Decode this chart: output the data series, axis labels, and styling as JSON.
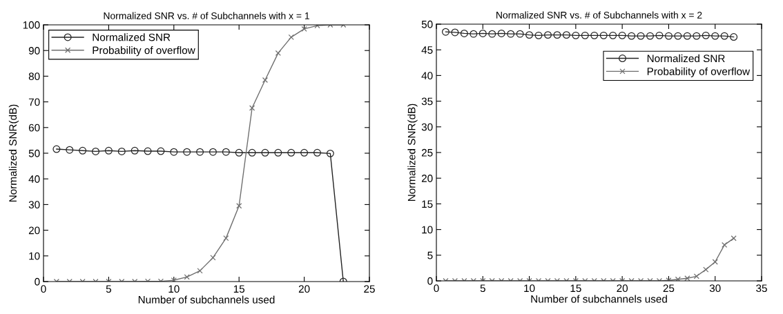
{
  "chart_data": [
    {
      "type": "line",
      "title": "Normalized SNR vs. # of Subchannels with x = 1",
      "xlabel": "Number of subchannels used",
      "ylabel": "Normalized SNR(dB)",
      "xlim": [
        0,
        25
      ],
      "xticks": [
        0,
        5,
        10,
        15,
        20,
        25
      ],
      "ylim": [
        0,
        100
      ],
      "yticks": [
        0,
        10,
        20,
        30,
        40,
        50,
        60,
        70,
        80,
        90,
        100
      ],
      "grid": false,
      "legend": "top left",
      "line_style": "solid",
      "series": [
        {
          "name": "Normalized SNR",
          "color": "#222222",
          "marker": "circle",
          "x": [
            1,
            2,
            3,
            4,
            5,
            6,
            7,
            8,
            9,
            10,
            11,
            12,
            13,
            14,
            15,
            16,
            17,
            18,
            19,
            20,
            21,
            22,
            23
          ],
          "values": [
            51.6,
            51.3,
            51.0,
            50.7,
            51.0,
            50.7,
            51.0,
            50.8,
            50.8,
            50.5,
            50.5,
            50.5,
            50.5,
            50.5,
            50.2,
            50.2,
            50.2,
            50.2,
            50.2,
            50.2,
            50.2,
            49.9,
            0
          ]
        },
        {
          "name": "Probability of overflow",
          "color": "#6e6e6e",
          "marker": "cross",
          "x": [
            1,
            2,
            3,
            4,
            5,
            6,
            7,
            8,
            9,
            10,
            11,
            12,
            13,
            14,
            15,
            16,
            17,
            18,
            19,
            20,
            21,
            22,
            23
          ],
          "values": [
            0,
            0,
            0,
            0,
            0,
            0,
            0,
            0.1,
            0.1,
            0.5,
            1.8,
            4.2,
            9.3,
            16.9,
            29.5,
            67.6,
            78.5,
            89,
            95.2,
            98.4,
            99.7,
            100,
            100
          ]
        }
      ]
    },
    {
      "type": "line",
      "title": "Normalized SNR vs. # of Subchannels with x = 2",
      "xlabel": "Number of subchannels used",
      "ylabel": "Normalized SNR(dB)",
      "xlim": [
        0,
        35
      ],
      "xticks": [
        0,
        5,
        10,
        15,
        20,
        25,
        30,
        35
      ],
      "ylim": [
        0,
        50
      ],
      "yticks": [
        0,
        5,
        10,
        15,
        20,
        25,
        30,
        35,
        40,
        45,
        50
      ],
      "grid": false,
      "legend": "top right",
      "line_style": "solid",
      "series": [
        {
          "name": "Normalized SNR",
          "color": "#222222",
          "marker": "circle",
          "x": [
            1,
            2,
            3,
            4,
            5,
            6,
            7,
            8,
            9,
            10,
            11,
            12,
            13,
            14,
            15,
            16,
            17,
            18,
            19,
            20,
            21,
            22,
            23,
            24,
            25,
            26,
            27,
            28,
            29,
            30,
            31,
            32
          ],
          "values": [
            48.5,
            48.4,
            48.2,
            48.1,
            48.2,
            48.1,
            48.2,
            48.1,
            48.1,
            47.9,
            47.8,
            47.9,
            47.9,
            47.9,
            47.8,
            47.8,
            47.8,
            47.8,
            47.8,
            47.8,
            47.7,
            47.7,
            47.7,
            47.8,
            47.7,
            47.7,
            47.7,
            47.7,
            47.8,
            47.7,
            47.7,
            47.5
          ]
        },
        {
          "name": "Probability of overflow",
          "color": "#6e6e6e",
          "marker": "cross",
          "x": [
            1,
            2,
            3,
            4,
            5,
            6,
            7,
            8,
            9,
            10,
            11,
            12,
            13,
            14,
            15,
            16,
            17,
            18,
            19,
            20,
            21,
            22,
            23,
            24,
            25,
            26,
            27,
            28,
            29,
            30,
            31,
            32
          ],
          "values": [
            0,
            0,
            0,
            0,
            0,
            0,
            0,
            0,
            0,
            0,
            0,
            0,
            0,
            0,
            0,
            0,
            0,
            0,
            0,
            0,
            0,
            0,
            0,
            0,
            0.1,
            0.3,
            0.5,
            0.9,
            2.2,
            3.7,
            7.0,
            8.3
          ]
        }
      ]
    }
  ]
}
